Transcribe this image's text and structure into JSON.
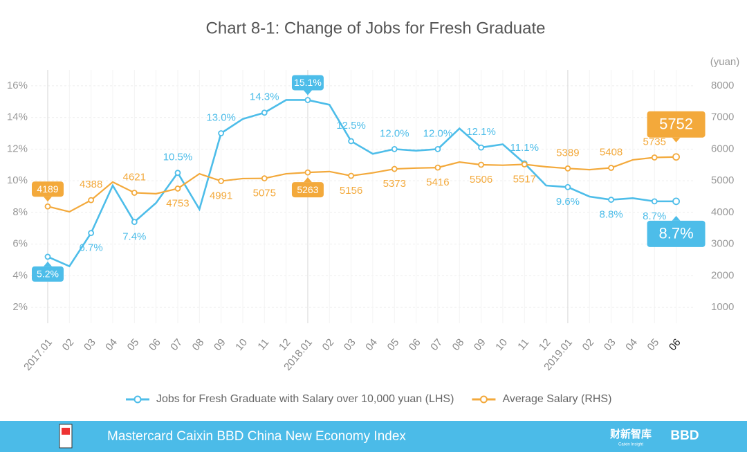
{
  "chart_data": {
    "type": "line",
    "title": "Chart 8-1: Change of Jobs for Fresh Graduate",
    "y2_label": "(yuan)",
    "categories": [
      "2017.01",
      "02",
      "03",
      "04",
      "05",
      "06",
      "07",
      "08",
      "09",
      "10",
      "11",
      "12",
      "2018.01",
      "02",
      "03",
      "04",
      "05",
      "06",
      "07",
      "08",
      "09",
      "10",
      "11",
      "12",
      "2019.01",
      "02",
      "03",
      "04",
      "05",
      "06"
    ],
    "series": [
      {
        "name": "Jobs for Fresh Graduate with Salary over 10,000 yuan (LHS)",
        "color": "#4dbde9",
        "axis": "y",
        "values": [
          5.2,
          4.6,
          6.7,
          9.7,
          7.4,
          8.6,
          10.5,
          8.2,
          13.0,
          13.9,
          14.3,
          15.1,
          15.1,
          14.8,
          12.5,
          11.7,
          12.0,
          11.9,
          12.0,
          13.3,
          12.1,
          12.3,
          11.1,
          9.7,
          9.6,
          9.0,
          8.8,
          8.9,
          8.7,
          8.7
        ],
        "value_labels": [
          "5.2%",
          null,
          "6.7%",
          null,
          "7.4%",
          null,
          "10.5%",
          null,
          "13.0%",
          null,
          "14.3%",
          null,
          "15.1%",
          null,
          "12.5%",
          null,
          "12.0%",
          null,
          "12.0%",
          null,
          "12.1%",
          null,
          "11.1%",
          null,
          "9.6%",
          null,
          "8.8%",
          null,
          "8.7%",
          "8.7%"
        ]
      },
      {
        "name": "Average Salary (RHS)",
        "color": "#f3a93b",
        "axis": "y2",
        "values": [
          4189,
          4020,
          4388,
          4960,
          4621,
          4590,
          4753,
          5220,
          4991,
          5070,
          5075,
          5220,
          5263,
          5290,
          5156,
          5250,
          5373,
          5400,
          5416,
          5590,
          5506,
          5490,
          5517,
          5440,
          5389,
          5350,
          5408,
          5660,
          5735,
          5752
        ],
        "value_labels": [
          "4189",
          null,
          "4388",
          null,
          "4621",
          null,
          "4753",
          null,
          "4991",
          null,
          "5075",
          null,
          "5263",
          null,
          "5156",
          null,
          "5373",
          null,
          "5416",
          null,
          "5506",
          null,
          "5517",
          null,
          "5389",
          null,
          "5408",
          null,
          "5735",
          "5752"
        ]
      }
    ],
    "ylim": [
      1,
      17
    ],
    "yticks": [
      {
        "value": 2,
        "label": "2%"
      },
      {
        "value": 4,
        "label": "4%"
      },
      {
        "value": 6,
        "label": "6%"
      },
      {
        "value": 8,
        "label": "8%"
      },
      {
        "value": 10,
        "label": "10%"
      },
      {
        "value": 12,
        "label": "12%"
      },
      {
        "value": 14,
        "label": "14%"
      },
      {
        "value": 16,
        "label": "16%"
      }
    ],
    "y2lim": [
      500,
      8500
    ],
    "y2ticks": [
      1000,
      2000,
      3000,
      4000,
      5000,
      6000,
      7000,
      8000
    ],
    "grid": true,
    "legend": "bottom"
  },
  "footer": {
    "text": "Mastercard Caixin BBD China New Economy Index",
    "logo1": "财新智库",
    "logo1_sub": "Caixin Insight",
    "logo2": "BBD"
  }
}
